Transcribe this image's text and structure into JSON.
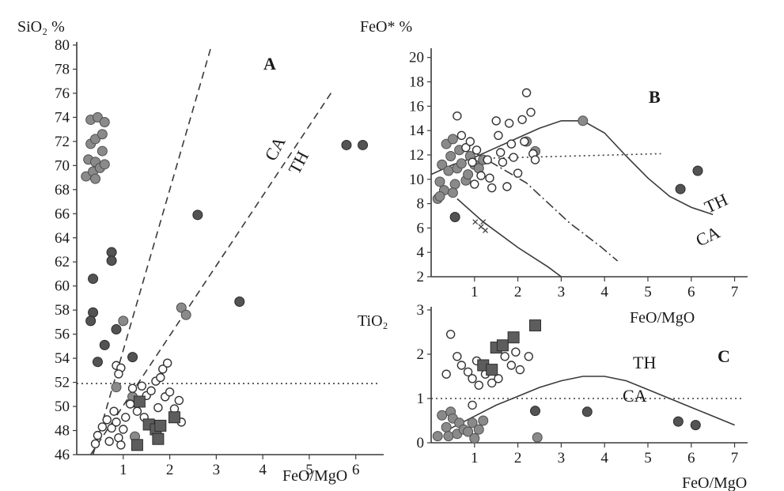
{
  "chart_data": [
    {
      "panel": "A",
      "type": "scatter",
      "panel_label": "A",
      "xlabel": "FeO/MgO",
      "ylabel": "SiO₂ %",
      "xlim": [
        0,
        6.6
      ],
      "ylim": [
        46,
        80
      ],
      "x_ticks": [
        1,
        2,
        3,
        4,
        5,
        6
      ],
      "y_ticks": [
        46,
        48,
        50,
        52,
        54,
        56,
        58,
        60,
        62,
        64,
        66,
        68,
        70,
        72,
        74,
        76,
        78,
        80
      ],
      "lines": [
        {
          "name": "",
          "style": "dashed",
          "points": [
            [
              0.35,
              46
            ],
            [
              2.9,
              80
            ]
          ]
        },
        {
          "name": "CA / TH",
          "style": "dashed",
          "points": [
            [
              0.3,
              46
            ],
            [
              5.5,
              76.2
            ]
          ]
        },
        {
          "name": "",
          "style": "dotted",
          "points": [
            [
              0,
              51.9
            ],
            [
              6.5,
              51.9
            ]
          ]
        }
      ],
      "boundary_labels": {
        "upper": "CA",
        "lower": "TH"
      },
      "series": [
        {
          "marker": "filled-grey-circle",
          "points": [
            [
              0.2,
              69.1
            ],
            [
              0.25,
              70.5
            ],
            [
              0.3,
              71.8
            ],
            [
              0.3,
              73.8
            ],
            [
              0.35,
              69.5
            ],
            [
              0.4,
              70.3
            ],
            [
              0.4,
              72.2
            ],
            [
              0.45,
              74
            ],
            [
              0.5,
              69.8
            ],
            [
              0.55,
              71.2
            ],
            [
              0.55,
              72.6
            ],
            [
              0.6,
              70.1
            ],
            [
              0.6,
              73.6
            ],
            [
              0.4,
              68.9
            ],
            [
              2.25,
              58.2
            ],
            [
              2.35,
              57.6
            ],
            [
              1.0,
              57.1
            ],
            [
              0.85,
              51.6
            ],
            [
              1.2,
              50.8
            ],
            [
              1.25,
              47.5
            ]
          ]
        },
        {
          "marker": "filled-dark-circle",
          "points": [
            [
              0.35,
              60.6
            ],
            [
              0.35,
              57.8
            ],
            [
              0.3,
              57.1
            ],
            [
              0.45,
              53.7
            ],
            [
              0.75,
              62.8
            ],
            [
              0.75,
              62.1
            ],
            [
              0.6,
              55.1
            ],
            [
              0.85,
              56.4
            ],
            [
              1.2,
              54.1
            ],
            [
              2.6,
              65.9
            ],
            [
              3.5,
              58.7
            ],
            [
              5.8,
              71.7
            ],
            [
              6.15,
              71.7
            ]
          ]
        },
        {
          "marker": "open-circle",
          "points": [
            [
              0.4,
              46.9
            ],
            [
              0.45,
              47.6
            ],
            [
              0.55,
              48.3
            ],
            [
              0.65,
              48.9
            ],
            [
              0.7,
              47.1
            ],
            [
              0.75,
              48.2
            ],
            [
              0.8,
              49.6
            ],
            [
              0.85,
              48.7
            ],
            [
              0.9,
              47.4
            ],
            [
              0.95,
              46.8
            ],
            [
              1.0,
              48.1
            ],
            [
              1.05,
              49.1
            ],
            [
              1.15,
              50.2
            ],
            [
              1.2,
              51.5
            ],
            [
              1.3,
              49.6
            ],
            [
              1.35,
              50.3
            ],
            [
              1.4,
              51.7
            ],
            [
              1.45,
              49.1
            ],
            [
              1.5,
              50.9
            ],
            [
              1.6,
              51.3
            ],
            [
              1.7,
              52.1
            ],
            [
              1.75,
              49.9
            ],
            [
              1.8,
              52.4
            ],
            [
              1.85,
              53.1
            ],
            [
              1.9,
              50.8
            ],
            [
              1.95,
              53.6
            ],
            [
              2.0,
              51.2
            ],
            [
              2.1,
              49.8
            ],
            [
              2.2,
              50.5
            ],
            [
              2.25,
              48.7
            ],
            [
              0.85,
              53.4
            ],
            [
              0.95,
              53.2
            ],
            [
              0.9,
              52.7
            ]
          ]
        },
        {
          "marker": "filled-square",
          "points": [
            [
              1.35,
              50.4
            ],
            [
              1.55,
              48.5
            ],
            [
              1.7,
              48.1
            ],
            [
              1.8,
              48.4
            ],
            [
              1.75,
              47.3
            ],
            [
              2.1,
              49.1
            ],
            [
              1.3,
              46.8
            ]
          ]
        }
      ]
    },
    {
      "panel": "B",
      "type": "scatter",
      "panel_label": "B",
      "xlabel": "FeO/MgO",
      "ylabel": "FeO* %",
      "xlim": [
        0,
        7.3
      ],
      "ylim": [
        2,
        20.5
      ],
      "x_ticks": [
        1,
        2,
        3,
        4,
        5,
        6,
        7
      ],
      "y_ticks": [
        2,
        4,
        6,
        8,
        10,
        12,
        14,
        16,
        18,
        20
      ],
      "lines": [
        {
          "name": "TH / CA",
          "style": "solid",
          "points": [
            [
              0,
              10.4
            ],
            [
              0.5,
              11.2
            ],
            [
              1,
              11.8
            ],
            [
              1.5,
              12.6
            ],
            [
              2,
              13.4
            ],
            [
              2.5,
              14.2
            ],
            [
              3,
              14.8
            ],
            [
              3.5,
              14.8
            ],
            [
              4,
              13.8
            ],
            [
              4.5,
              11.9
            ],
            [
              5,
              10.1
            ],
            [
              5.5,
              8.6
            ],
            [
              6,
              7.7
            ],
            [
              6.5,
              7.1
            ]
          ]
        },
        {
          "name": "",
          "style": "dotted",
          "points": [
            [
              1.0,
              11.7
            ],
            [
              5.3,
              12.1
            ]
          ]
        },
        {
          "name": "",
          "style": "dash-dot",
          "points": [
            [
              1.0,
              12.2
            ],
            [
              2.2,
              9.7
            ],
            [
              3.2,
              6.4
            ],
            [
              3.9,
              4.5
            ],
            [
              4.3,
              3.3
            ]
          ]
        },
        {
          "name": "",
          "style": "solid-x",
          "points": [
            [
              0.6,
              8.4
            ],
            [
              1.2,
              6.5
            ],
            [
              2.0,
              4.4
            ],
            [
              2.7,
              2.8
            ],
            [
              3.0,
              2.0
            ]
          ]
        }
      ],
      "boundary_labels": {
        "upper": "TH",
        "lower": "CA"
      },
      "series": [
        {
          "marker": "filled-grey-circle",
          "points": [
            [
              0.15,
              8.4
            ],
            [
              0.2,
              9.8
            ],
            [
              0.25,
              11.2
            ],
            [
              0.3,
              9.1
            ],
            [
              0.35,
              12.9
            ],
            [
              0.4,
              10.7
            ],
            [
              0.45,
              11.9
            ],
            [
              0.5,
              13.3
            ],
            [
              0.55,
              9.6
            ],
            [
              0.6,
              10.9
            ],
            [
              0.65,
              12.4
            ],
            [
              0.7,
              11.3
            ],
            [
              0.8,
              9.9
            ],
            [
              0.85,
              10.4
            ],
            [
              0.9,
              11.9
            ],
            [
              1.0,
              11.2
            ],
            [
              1.1,
              10.9
            ],
            [
              1.2,
              11.6
            ],
            [
              2.2,
              13.1
            ],
            [
              2.4,
              12.3
            ],
            [
              3.5,
              14.8
            ],
            [
              0.2,
              8.6
            ],
            [
              0.5,
              8.9
            ]
          ]
        },
        {
          "marker": "filled-dark-circle",
          "points": [
            [
              0.55,
              6.9
            ],
            [
              5.75,
              9.2
            ],
            [
              6.15,
              10.7
            ]
          ]
        },
        {
          "marker": "open-circle",
          "points": [
            [
              0.6,
              15.2
            ],
            [
              0.7,
              13.6
            ],
            [
              0.8,
              12.6
            ],
            [
              0.9,
              13.1
            ],
            [
              0.95,
              11.4
            ],
            [
              1.0,
              9.6
            ],
            [
              1.05,
              12.4
            ],
            [
              1.15,
              10.3
            ],
            [
              1.3,
              11.6
            ],
            [
              1.35,
              10.1
            ],
            [
              1.4,
              9.3
            ],
            [
              1.5,
              14.8
            ],
            [
              1.55,
              13.6
            ],
            [
              1.6,
              12.2
            ],
            [
              1.65,
              11.4
            ],
            [
              1.75,
              9.4
            ],
            [
              1.8,
              14.6
            ],
            [
              1.85,
              12.9
            ],
            [
              1.9,
              11.8
            ],
            [
              2.0,
              10.5
            ],
            [
              2.1,
              14.9
            ],
            [
              2.15,
              13.1
            ],
            [
              2.2,
              17.1
            ],
            [
              2.3,
              15.5
            ],
            [
              2.35,
              12.1
            ],
            [
              2.4,
              11.6
            ]
          ]
        },
        {
          "marker": "cross",
          "points": [
            [
              1.15,
              6.1
            ],
            [
              1.25,
              5.8
            ]
          ]
        }
      ]
    },
    {
      "panel": "C",
      "type": "scatter",
      "panel_label": "C",
      "xlabel": "FeO/MgO",
      "ylabel": "TiO₂",
      "xlim": [
        0,
        7.3
      ],
      "ylim": [
        0,
        3
      ],
      "x_ticks": [
        1,
        2,
        3,
        4,
        5,
        6,
        7
      ],
      "y_ticks": [
        0,
        1,
        2,
        3
      ],
      "lines": [
        {
          "name": "TH",
          "style": "solid",
          "points": [
            [
              0.4,
              0.3
            ],
            [
              1,
              0.6
            ],
            [
              1.5,
              0.85
            ],
            [
              2,
              1.05
            ],
            [
              2.5,
              1.25
            ],
            [
              3,
              1.4
            ],
            [
              3.5,
              1.5
            ],
            [
              4,
              1.5
            ],
            [
              4.5,
              1.4
            ],
            [
              5,
              1.2
            ],
            [
              5.5,
              1.0
            ],
            [
              6,
              0.8
            ],
            [
              6.5,
              0.6
            ],
            [
              7,
              0.4
            ]
          ]
        },
        {
          "name": "CA",
          "style": "dotted",
          "points": [
            [
              0,
              1.0
            ],
            [
              7.2,
              1.0
            ]
          ]
        }
      ],
      "boundary_labels": {
        "upper": "TH",
        "lower": "CA"
      },
      "series": [
        {
          "marker": "filled-grey-circle",
          "points": [
            [
              0.15,
              0.15
            ],
            [
              0.25,
              0.62
            ],
            [
              0.35,
              0.35
            ],
            [
              0.4,
              0.15
            ],
            [
              0.45,
              0.7
            ],
            [
              0.5,
              0.55
            ],
            [
              0.6,
              0.2
            ],
            [
              0.65,
              0.45
            ],
            [
              0.75,
              0.3
            ],
            [
              0.85,
              0.25
            ],
            [
              0.95,
              0.45
            ],
            [
              1.0,
              0.1
            ],
            [
              1.1,
              0.3
            ],
            [
              1.2,
              0.5
            ],
            [
              2.45,
              0.12
            ]
          ]
        },
        {
          "marker": "filled-dark-circle",
          "points": [
            [
              2.4,
              0.72
            ],
            [
              3.6,
              0.7
            ],
            [
              5.7,
              0.48
            ],
            [
              6.1,
              0.4
            ]
          ]
        },
        {
          "marker": "open-circle",
          "points": [
            [
              0.45,
              2.45
            ],
            [
              0.6,
              1.95
            ],
            [
              0.7,
              1.75
            ],
            [
              0.85,
              1.6
            ],
            [
              0.95,
              1.45
            ],
            [
              1.05,
              1.85
            ],
            [
              1.1,
              1.3
            ],
            [
              1.25,
              1.55
            ],
            [
              1.4,
              1.35
            ],
            [
              1.55,
              1.45
            ],
            [
              1.7,
              1.95
            ],
            [
              1.85,
              1.75
            ],
            [
              1.95,
              2.05
            ],
            [
              2.05,
              1.65
            ],
            [
              2.25,
              1.95
            ],
            [
              0.35,
              1.55
            ],
            [
              0.95,
              0.85
            ]
          ]
        },
        {
          "marker": "filled-square",
          "points": [
            [
              1.2,
              1.75
            ],
            [
              1.4,
              1.65
            ],
            [
              1.5,
              2.15
            ],
            [
              1.65,
              2.2
            ],
            [
              1.9,
              2.38
            ],
            [
              2.4,
              2.65
            ]
          ]
        }
      ]
    }
  ]
}
